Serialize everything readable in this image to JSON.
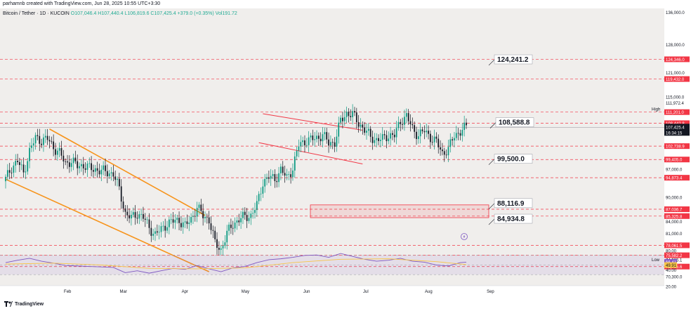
{
  "header": {
    "created_by": "parhamnb created with TradingView.com, Jun 28, 2025 10:55 UTC+3:30"
  },
  "legend": {
    "symbol": "Bitcoin / Tether · 1D · KUCOIN",
    "ohlc": "O107,046.4 H107,440.4 L106,819.6 C107,425.4 +379.0 (+0.35%)",
    "volume": "Vol191.72"
  },
  "footer": {
    "brand": "TradingView"
  },
  "colors": {
    "up": "#089981",
    "down": "#131722",
    "channel": "#f7931a",
    "level": "#f23645",
    "rsi": "#7e57c2",
    "rsi_ma": "#f7c548",
    "background": "#f0eeec"
  },
  "chart_data": {
    "type": "candlestick",
    "title": "Bitcoin / Tether · 1D · KUCOIN",
    "x_ticks": [
      "Feb",
      "Mar",
      "Apr",
      "May",
      "Jun",
      "Jul",
      "Aug",
      "Sep"
    ],
    "price_axis": [
      "136,000.0",
      "128,000.0",
      "121,000.0",
      "115,000.0",
      "103,000.0",
      "97,000.0",
      "90,000.0",
      "84,000.0",
      "81,000.0",
      "74,505.1",
      "70,300.0"
    ],
    "ylim": [
      68000,
      137000
    ],
    "horizontal_levels": [
      124346,
      119432,
      111201,
      108442.8,
      102738.9,
      99405,
      94873.4,
      87036.7,
      85325.8,
      78061.5,
      75582.2,
      72765.6
    ],
    "level_labels": [
      "124,346.0",
      "119,432.0",
      "111,201.0",
      "108,442.8",
      "102,738.9",
      "99,405.0",
      "94,873.4",
      "87,036.7",
      "85,325.8",
      "78,061.5",
      "75,582.2",
      "72,765.6"
    ],
    "current_price": {
      "value": 107425.4,
      "label": "107,425.4",
      "countdown": "16:34:15"
    },
    "high_marker": {
      "label": "High",
      "value": "111,972.4"
    },
    "low_marker": {
      "label": "Low",
      "value": "74,505.1"
    },
    "annotations": [
      {
        "text": "124,241.2",
        "price": 124241.2
      },
      {
        "text": "108,588.8",
        "price": 108588.8
      },
      {
        "text": "99,500.0",
        "price": 99500
      },
      {
        "text": "88,116.9",
        "price": 88116.9
      },
      {
        "text": "84,934.8",
        "price": 84934.8
      }
    ],
    "demand_zone": {
      "from": 84934.8,
      "to": 88116.9
    },
    "descending_channel": {
      "upper": [
        [
          107000,
          "2025-01-23"
        ],
        [
          85500,
          "2025-04-11"
        ]
      ],
      "lower": [
        [
          94500,
          "2025-01-01"
        ],
        [
          71500,
          "2025-04-13"
        ]
      ]
    },
    "flag_channel": {
      "upper": [
        [
          110800,
          "2025-05-10"
        ],
        [
          106700,
          "2025-06-29"
        ]
      ],
      "lower": [
        [
          103600,
          "2025-05-08"
        ],
        [
          98300,
          "2025-06-29"
        ]
      ]
    },
    "close_path": [
      [
        0,
        94500
      ],
      [
        3,
        97500
      ],
      [
        6,
        99000
      ],
      [
        9,
        96000
      ],
      [
        12,
        101500
      ],
      [
        15,
        104800
      ],
      [
        18,
        104200
      ],
      [
        21,
        104500
      ],
      [
        24,
        102500
      ],
      [
        27,
        101000
      ],
      [
        30,
        98500
      ],
      [
        33,
        99000
      ],
      [
        36,
        97800
      ],
      [
        39,
        98000
      ],
      [
        42,
        97200
      ],
      [
        45,
        97000
      ],
      [
        48,
        96500
      ],
      [
        51,
        96300
      ],
      [
        54,
        95800
      ],
      [
        57,
        92000
      ],
      [
        60,
        86000
      ],
      [
        63,
        84800
      ],
      [
        66,
        86000
      ],
      [
        69,
        85000
      ],
      [
        72,
        82500
      ],
      [
        75,
        80700
      ],
      [
        78,
        82000
      ],
      [
        81,
        83500
      ],
      [
        84,
        84000
      ],
      [
        87,
        84400
      ],
      [
        90,
        82800
      ],
      [
        93,
        84600
      ],
      [
        96,
        87500
      ],
      [
        99,
        85400
      ],
      [
        102,
        84500
      ],
      [
        105,
        78500
      ],
      [
        108,
        77000
      ],
      [
        111,
        81000
      ],
      [
        114,
        83300
      ],
      [
        117,
        84500
      ],
      [
        120,
        85200
      ],
      [
        123,
        85500
      ],
      [
        126,
        88000
      ],
      [
        129,
        93800
      ],
      [
        132,
        95000
      ],
      [
        135,
        94500
      ],
      [
        138,
        96800
      ],
      [
        141,
        94800
      ],
      [
        144,
        97300
      ],
      [
        147,
        103000
      ],
      [
        150,
        104000
      ],
      [
        153,
        104300
      ],
      [
        156,
        104800
      ],
      [
        159,
        105500
      ],
      [
        162,
        103500
      ],
      [
        165,
        103700
      ],
      [
        168,
        109000
      ],
      [
        171,
        111000
      ],
      [
        174,
        110500
      ],
      [
        177,
        108500
      ],
      [
        180,
        106800
      ],
      [
        183,
        105000
      ],
      [
        186,
        104300
      ],
      [
        189,
        104500
      ],
      [
        192,
        105500
      ],
      [
        195,
        105300
      ],
      [
        198,
        109000
      ],
      [
        201,
        110200
      ],
      [
        204,
        107000
      ],
      [
        207,
        105500
      ],
      [
        210,
        106500
      ],
      [
        213,
        105000
      ],
      [
        216,
        103700
      ],
      [
        219,
        101000
      ],
      [
        222,
        102000
      ],
      [
        225,
        105300
      ],
      [
        228,
        106500
      ],
      [
        231,
        107425
      ]
    ],
    "rsi": {
      "axis": [
        "80.00",
        "40.00",
        "20.00"
      ],
      "current": "56.41",
      "ma": "49.91",
      "values": [
        [
          0,
          55
        ],
        [
          6,
          60
        ],
        [
          12,
          64
        ],
        [
          18,
          58
        ],
        [
          24,
          54
        ],
        [
          30,
          49
        ],
        [
          36,
          48
        ],
        [
          42,
          47
        ],
        [
          48,
          46
        ],
        [
          54,
          45
        ],
        [
          60,
          34
        ],
        [
          66,
          38
        ],
        [
          72,
          33
        ],
        [
          78,
          38
        ],
        [
          84,
          43
        ],
        [
          90,
          41
        ],
        [
          96,
          49
        ],
        [
          102,
          42
        ],
        [
          108,
          36
        ],
        [
          114,
          44
        ],
        [
          120,
          47
        ],
        [
          126,
          55
        ],
        [
          132,
          61
        ],
        [
          138,
          63
        ],
        [
          144,
          66
        ],
        [
          150,
          70
        ],
        [
          156,
          71
        ],
        [
          162,
          66
        ],
        [
          168,
          74
        ],
        [
          174,
          68
        ],
        [
          180,
          62
        ],
        [
          186,
          58
        ],
        [
          192,
          60
        ],
        [
          198,
          64
        ],
        [
          204,
          58
        ],
        [
          210,
          56
        ],
        [
          216,
          50
        ],
        [
          222,
          48
        ],
        [
          228,
          55
        ],
        [
          231,
          56
        ]
      ],
      "ma_values": [
        [
          0,
          52
        ],
        [
          24,
          54
        ],
        [
          48,
          50
        ],
        [
          72,
          43
        ],
        [
          96,
          42
        ],
        [
          120,
          44
        ],
        [
          144,
          55
        ],
        [
          168,
          62
        ],
        [
          192,
          63
        ],
        [
          216,
          57
        ],
        [
          231,
          51
        ]
      ]
    }
  }
}
